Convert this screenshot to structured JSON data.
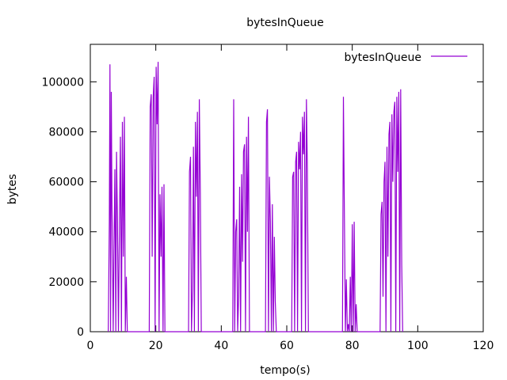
{
  "chart_data": {
    "type": "line",
    "title": "bytesInQueue",
    "xlabel": "tempo(s)",
    "ylabel": "bytes",
    "xlim": [
      0,
      120
    ],
    "ylim": [
      0,
      115000
    ],
    "x_ticks": [
      0,
      20,
      40,
      60,
      80,
      100,
      120
    ],
    "y_ticks": [
      0,
      20000,
      40000,
      60000,
      80000,
      100000
    ],
    "x_tick_labels": [
      "0",
      "20",
      "40",
      "60",
      "80",
      "100",
      "120"
    ],
    "y_tick_labels": [
      "0",
      "20000",
      "40000",
      "60000",
      "80000",
      "100000"
    ],
    "grid": false,
    "legend_position": "top-right",
    "series": [
      {
        "name": "bytesInQueue",
        "color": "#9400d3",
        "x": [
          5.5,
          5.8,
          6.0,
          6.2,
          6.4,
          6.6,
          6.8,
          7.0,
          7.2,
          7.5,
          7.8,
          8.0,
          8.3,
          8.6,
          8.9,
          9.2,
          9.5,
          9.8,
          10.1,
          10.4,
          10.7,
          11.0,
          11.3,
          11.6,
          18.0,
          18.3,
          18.6,
          18.9,
          19.2,
          19.5,
          19.8,
          20.1,
          20.4,
          20.7,
          21.0,
          21.3,
          21.6,
          21.9,
          22.2,
          22.5,
          22.8,
          23.1,
          30.0,
          30.3,
          30.6,
          30.9,
          31.2,
          31.5,
          31.8,
          32.1,
          32.4,
          32.7,
          33.0,
          33.3,
          33.6,
          33.9,
          34.2,
          34.5,
          43.5,
          43.8,
          44.1,
          44.4,
          44.7,
          45.0,
          45.3,
          45.6,
          45.9,
          46.2,
          46.5,
          46.8,
          47.1,
          47.4,
          47.7,
          48.0,
          48.3,
          48.6,
          48.9,
          49.2,
          53.5,
          53.8,
          54.1,
          54.4,
          54.7,
          55.0,
          55.3,
          55.6,
          55.9,
          56.2,
          56.5,
          56.8,
          57.1,
          57.4,
          57.7,
          61.5,
          61.8,
          62.1,
          62.4,
          62.7,
          63.0,
          63.3,
          63.6,
          63.9,
          64.2,
          64.5,
          64.8,
          65.1,
          65.4,
          65.7,
          66.0,
          66.3,
          66.6,
          66.9,
          77.0,
          77.3,
          77.6,
          77.9,
          78.2,
          78.5,
          78.8,
          79.1,
          79.4,
          79.7,
          80.0,
          80.3,
          80.6,
          80.9,
          81.2,
          81.5,
          81.8,
          88.5,
          88.8,
          89.1,
          89.4,
          89.7,
          90.0,
          90.3,
          90.6,
          90.9,
          91.2,
          91.5,
          91.8,
          92.1,
          92.4,
          92.7,
          93.0,
          93.3,
          93.6,
          93.9,
          94.2,
          94.5,
          94.8,
          95.1,
          95.4
        ],
        "values": [
          0,
          44000,
          107000,
          0,
          96000,
          52000,
          29000,
          0,
          30000,
          65000,
          0,
          72000,
          43000,
          0,
          43000,
          78000,
          0,
          84000,
          30000,
          86000,
          0,
          22000,
          0,
          0,
          0,
          90000,
          95000,
          30000,
          94000,
          102000,
          0,
          106000,
          83000,
          108000,
          0,
          55000,
          30000,
          58000,
          0,
          59000,
          0,
          0,
          0,
          64000,
          70000,
          0,
          17000,
          74000,
          0,
          84000,
          54000,
          88000,
          0,
          93000,
          55000,
          0,
          0,
          0,
          0,
          93000,
          0,
          40000,
          45000,
          0,
          14000,
          58000,
          0,
          63000,
          28000,
          72000,
          75000,
          0,
          78000,
          40000,
          86000,
          0,
          0,
          0,
          0,
          84000,
          89000,
          0,
          62000,
          44000,
          0,
          51000,
          0,
          38000,
          12000,
          0,
          0,
          0,
          0,
          0,
          62000,
          64000,
          0,
          68000,
          72000,
          0,
          76000,
          65000,
          80000,
          0,
          86000,
          71000,
          88000,
          0,
          93000,
          65000,
          0,
          0,
          0,
          94000,
          48000,
          0,
          21000,
          0,
          3000,
          0,
          22000,
          0,
          43000,
          0,
          44000,
          0,
          11000,
          0,
          0,
          0,
          47000,
          52000,
          14000,
          60000,
          68000,
          0,
          74000,
          30000,
          79000,
          84000,
          0,
          87000,
          60000,
          88000,
          92000,
          0,
          94000,
          64000,
          96000,
          0,
          97000,
          27000,
          0
        ]
      }
    ]
  }
}
